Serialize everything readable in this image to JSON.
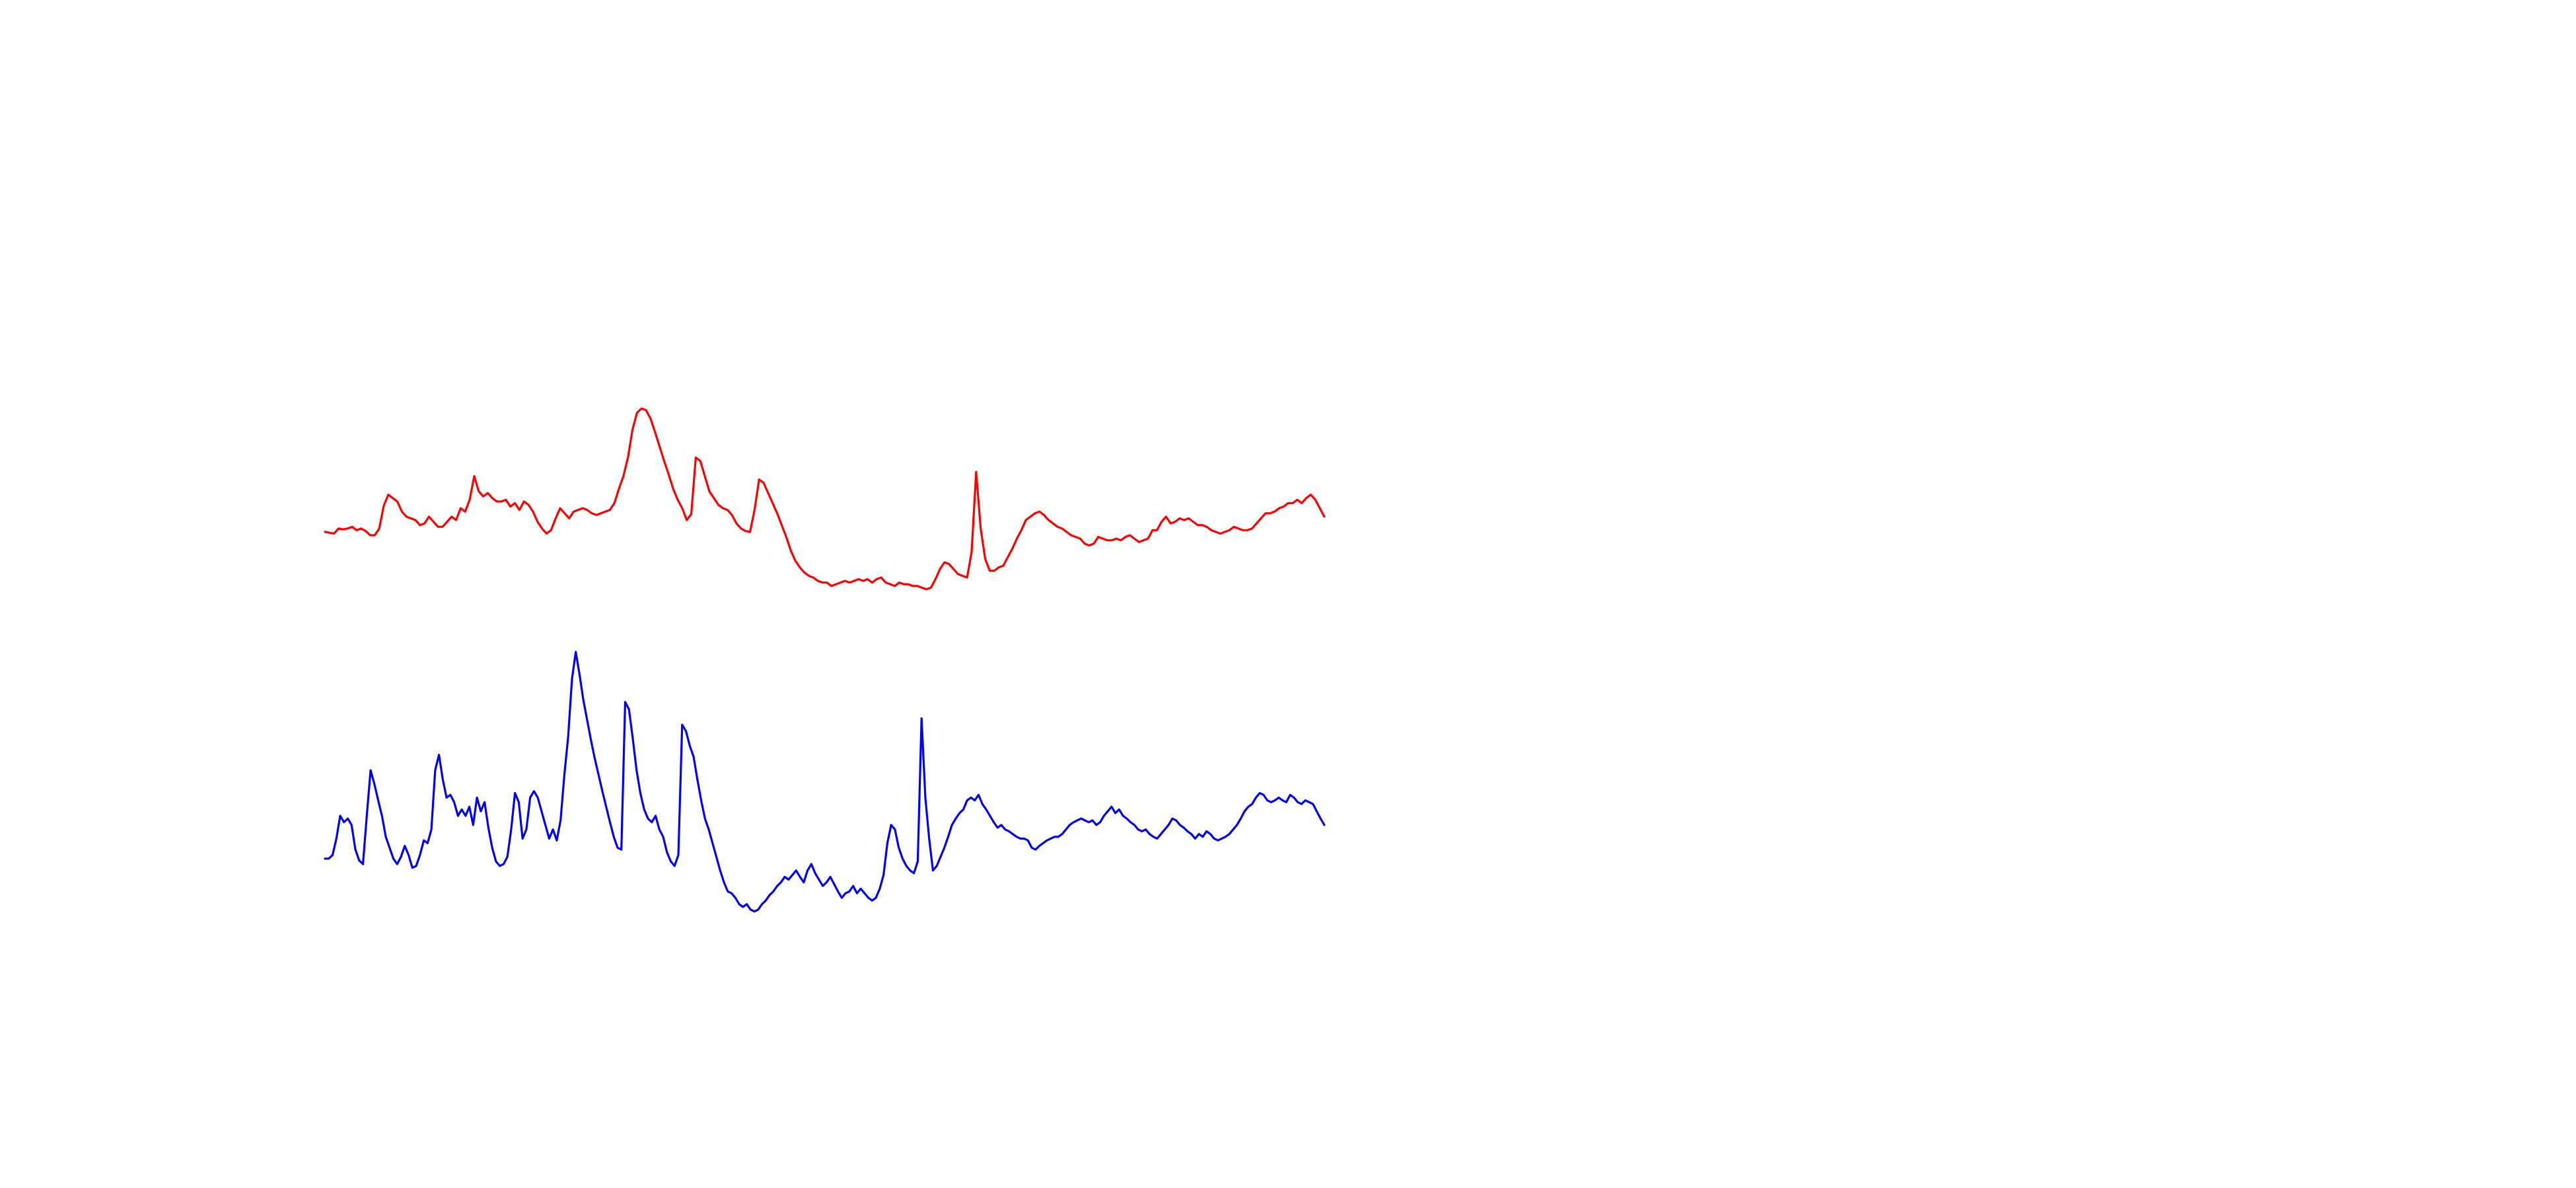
{
  "chart_data": {
    "type": "line",
    "title": "",
    "xlabel": "",
    "ylabel": "",
    "grid": false,
    "axes_visible": false,
    "legend": "none",
    "series": [
      {
        "color": "#ff0000",
        "y": [
          0.54,
          0.53,
          0.52,
          0.58,
          0.57,
          0.58,
          0.6,
          0.56,
          0.58,
          0.55,
          0.5,
          0.5,
          0.58,
          0.85,
          0.98,
          0.94,
          0.9,
          0.78,
          0.72,
          0.7,
          0.68,
          0.62,
          0.64,
          0.72,
          0.66,
          0.6,
          0.6,
          0.66,
          0.72,
          0.68,
          0.82,
          0.78,
          0.92,
          1.2,
          1.02,
          0.96,
          1.0,
          0.94,
          0.9,
          0.9,
          0.92,
          0.84,
          0.88,
          0.8,
          0.9,
          0.86,
          0.78,
          0.66,
          0.58,
          0.52,
          0.56,
          0.7,
          0.82,
          0.76,
          0.7,
          0.78,
          0.8,
          0.82,
          0.8,
          0.76,
          0.74,
          0.76,
          0.78,
          0.8,
          0.88,
          1.05,
          1.2,
          1.42,
          1.75,
          1.95,
          2.0,
          1.98,
          1.88,
          1.72,
          1.55,
          1.38,
          1.22,
          1.05,
          0.92,
          0.82,
          0.68,
          0.75,
          1.42,
          1.38,
          1.2,
          1.02,
          0.94,
          0.86,
          0.82,
          0.8,
          0.74,
          0.64,
          0.58,
          0.55,
          0.54,
          0.8,
          1.16,
          1.12,
          1.0,
          0.88,
          0.76,
          0.62,
          0.48,
          0.32,
          0.2,
          0.12,
          0.06,
          0.02,
          0.0,
          -0.04,
          -0.06,
          -0.06,
          -0.1,
          -0.08,
          -0.06,
          -0.04,
          -0.06,
          -0.04,
          -0.02,
          -0.04,
          -0.02,
          -0.06,
          -0.02,
          0.0,
          -0.06,
          -0.08,
          -0.1,
          -0.06,
          -0.08,
          -0.08,
          -0.1,
          -0.1,
          -0.12,
          -0.14,
          -0.12,
          -0.02,
          0.1,
          0.18,
          0.16,
          0.1,
          0.04,
          0.02,
          0.0,
          0.3,
          1.25,
          0.58,
          0.22,
          0.08,
          0.08,
          0.12,
          0.14,
          0.24,
          0.34,
          0.46,
          0.56,
          0.68,
          0.72,
          0.76,
          0.78,
          0.74,
          0.68,
          0.64,
          0.6,
          0.58,
          0.54,
          0.5,
          0.48,
          0.46,
          0.4,
          0.38,
          0.4,
          0.48,
          0.46,
          0.44,
          0.44,
          0.46,
          0.44,
          0.48,
          0.5,
          0.46,
          0.42,
          0.44,
          0.46,
          0.56,
          0.56,
          0.66,
          0.72,
          0.64,
          0.66,
          0.7,
          0.68,
          0.7,
          0.66,
          0.62,
          0.62,
          0.6,
          0.56,
          0.54,
          0.52,
          0.54,
          0.56,
          0.6,
          0.58,
          0.56,
          0.56,
          0.58,
          0.64,
          0.7,
          0.76,
          0.76,
          0.78,
          0.82,
          0.84,
          0.88,
          0.88,
          0.92,
          0.88,
          0.94,
          0.98,
          0.92,
          0.82,
          0.72
        ]
      },
      {
        "color": "#0000ff",
        "y": [
          0.08,
          0.08,
          0.12,
          0.3,
          0.55,
          0.48,
          0.52,
          0.45,
          0.18,
          0.06,
          0.02,
          0.55,
          1.05,
          0.9,
          0.72,
          0.55,
          0.32,
          0.2,
          0.08,
          0.02,
          0.1,
          0.22,
          0.12,
          -0.02,
          0.0,
          0.12,
          0.28,
          0.25,
          0.4,
          1.05,
          1.22,
          0.95,
          0.75,
          0.78,
          0.7,
          0.55,
          0.62,
          0.55,
          0.65,
          0.45,
          0.75,
          0.6,
          0.7,
          0.42,
          0.2,
          0.05,
          0.0,
          0.02,
          0.1,
          0.4,
          0.8,
          0.7,
          0.3,
          0.4,
          0.75,
          0.82,
          0.75,
          0.6,
          0.45,
          0.3,
          0.4,
          0.28,
          0.5,
          1.0,
          1.42,
          2.05,
          2.35,
          2.1,
          1.82,
          1.6,
          1.38,
          1.18,
          1.0,
          0.82,
          0.65,
          0.48,
          0.32,
          0.2,
          0.18,
          1.8,
          1.72,
          1.4,
          1.05,
          0.8,
          0.62,
          0.52,
          0.48,
          0.55,
          0.4,
          0.32,
          0.15,
          0.05,
          0.0,
          0.12,
          1.55,
          1.48,
          1.32,
          1.2,
          0.95,
          0.72,
          0.52,
          0.4,
          0.25,
          0.1,
          -0.05,
          -0.18,
          -0.28,
          -0.3,
          -0.35,
          -0.42,
          -0.45,
          -0.42,
          -0.48,
          -0.5,
          -0.48,
          -0.42,
          -0.38,
          -0.32,
          -0.28,
          -0.22,
          -0.18,
          -0.12,
          -0.15,
          -0.1,
          -0.05,
          -0.12,
          -0.18,
          -0.05,
          0.02,
          -0.08,
          -0.15,
          -0.22,
          -0.18,
          -0.12,
          -0.2,
          -0.28,
          -0.35,
          -0.3,
          -0.28,
          -0.22,
          -0.3,
          -0.25,
          -0.3,
          -0.35,
          -0.38,
          -0.35,
          -0.25,
          -0.1,
          0.25,
          0.45,
          0.4,
          0.2,
          0.08,
          0.0,
          -0.05,
          -0.08,
          0.05,
          1.62,
          0.75,
          0.3,
          -0.05,
          0.0,
          0.1,
          0.2,
          0.32,
          0.45,
          0.52,
          0.58,
          0.62,
          0.72,
          0.75,
          0.72,
          0.78,
          0.68,
          0.62,
          0.55,
          0.48,
          0.42,
          0.45,
          0.4,
          0.38,
          0.35,
          0.32,
          0.3,
          0.3,
          0.28,
          0.2,
          0.18,
          0.22,
          0.25,
          0.28,
          0.3,
          0.32,
          0.32,
          0.35,
          0.4,
          0.45,
          0.48,
          0.5,
          0.52,
          0.5,
          0.48,
          0.5,
          0.45,
          0.48,
          0.55,
          0.6,
          0.65,
          0.58,
          0.62,
          0.55,
          0.52,
          0.48,
          0.45,
          0.4,
          0.38,
          0.4,
          0.35,
          0.32,
          0.3,
          0.35,
          0.4,
          0.45,
          0.52,
          0.5,
          0.45,
          0.42,
          0.38,
          0.35,
          0.3,
          0.35,
          0.32,
          0.38,
          0.35,
          0.3,
          0.28,
          0.3,
          0.32,
          0.35,
          0.4,
          0.45,
          0.52,
          0.6,
          0.65,
          0.68,
          0.75,
          0.8,
          0.78,
          0.72,
          0.7,
          0.72,
          0.75,
          0.72,
          0.7,
          0.78,
          0.75,
          0.7,
          0.68,
          0.72,
          0.7,
          0.68,
          0.6,
          0.52,
          0.45
        ]
      }
    ]
  }
}
